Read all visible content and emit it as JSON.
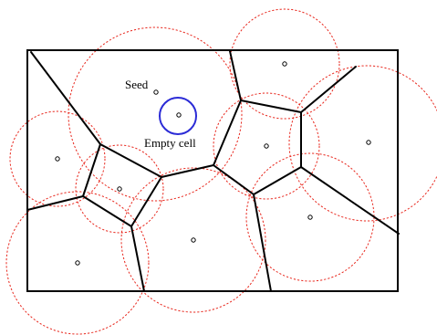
{
  "labels": {
    "seed": "Seed",
    "empty_cell": "Empty cell"
  },
  "colors": {
    "boundary": "#000000",
    "edges": "#000000",
    "circles": "#e8281e",
    "empty_cell_circle": "#2b2bd6",
    "seed_points": "#000000"
  }
}
